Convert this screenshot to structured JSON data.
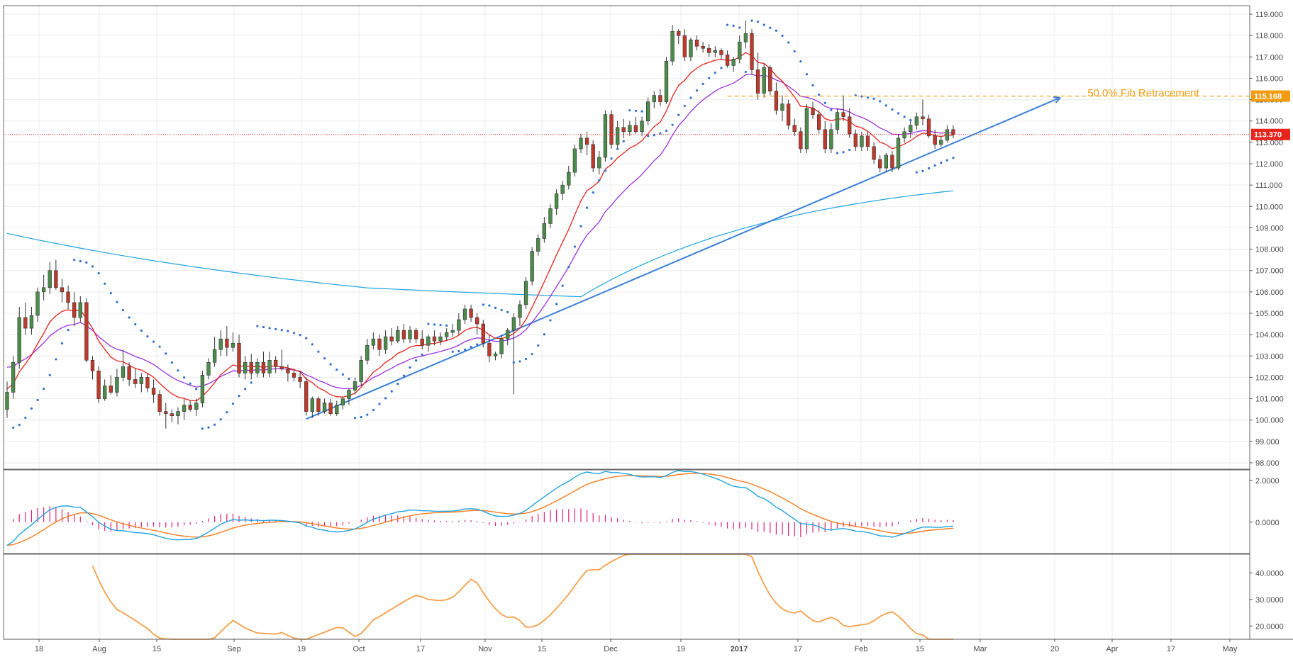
{
  "chart_data": {
    "type": "candlestick",
    "title": "",
    "colors": {
      "up_candle": "#4c8c4a",
      "down_candle": "#c0392b",
      "ema_fast": "#e8231c",
      "ema_slow": "#9b30e0",
      "sma_long": "#1fa3e0",
      "psar": "#2f6fd0",
      "trendline": "#3a7fd8",
      "fib": "#f39c12",
      "price_line": "#e8231c",
      "macd": "#1fa3e0",
      "signal": "#f57c1f",
      "histogram": "#e0217b",
      "adx": "#f5a04a"
    },
    "x_axis": {
      "tick_labels": [
        "18",
        "Aug",
        "15",
        "Sep",
        "19",
        "Oct",
        "17",
        "Nov",
        "15",
        "Dec",
        "19",
        "2017",
        "17",
        "Feb",
        "15",
        "Mar",
        "20",
        "Apr",
        "17",
        "May"
      ],
      "bold_label": "2017"
    },
    "y_axis": {
      "ylim": [
        97.7,
        119.4
      ],
      "ticks": [
        "119.000",
        "118.000",
        "117.000",
        "116.000",
        "115.000",
        "114.000",
        "113.000",
        "112.000",
        "111.000",
        "110.000",
        "109.000",
        "108.000",
        "107.000",
        "106.000",
        "105.000",
        "104.000",
        "103.000",
        "102.000",
        "101.000",
        "100.000",
        "99.000",
        "98.000"
      ]
    },
    "candles": [
      {
        "o": 100.5,
        "h": 101.8,
        "l": 100.1,
        "c": 101.3
      },
      {
        "o": 101.3,
        "h": 103.0,
        "l": 101.0,
        "c": 102.7
      },
      {
        "o": 102.7,
        "h": 105.3,
        "l": 102.4,
        "c": 104.8
      },
      {
        "o": 104.8,
        "h": 105.5,
        "l": 104.0,
        "c": 104.3
      },
      {
        "o": 104.3,
        "h": 105.3,
        "l": 104.0,
        "c": 104.9
      },
      {
        "o": 104.9,
        "h": 106.2,
        "l": 104.6,
        "c": 106.0
      },
      {
        "o": 106.0,
        "h": 106.8,
        "l": 105.6,
        "c": 106.2
      },
      {
        "o": 106.2,
        "h": 107.4,
        "l": 105.9,
        "c": 107.0
      },
      {
        "o": 107.0,
        "h": 107.5,
        "l": 106.1,
        "c": 106.2
      },
      {
        "o": 106.2,
        "h": 106.6,
        "l": 105.5,
        "c": 106.0
      },
      {
        "o": 106.0,
        "h": 106.3,
        "l": 105.2,
        "c": 105.5
      },
      {
        "o": 105.5,
        "h": 106.0,
        "l": 104.4,
        "c": 104.8
      },
      {
        "o": 104.8,
        "h": 105.8,
        "l": 104.6,
        "c": 105.5
      },
      {
        "o": 105.5,
        "h": 105.7,
        "l": 102.7,
        "c": 102.8
      },
      {
        "o": 102.8,
        "h": 103.0,
        "l": 101.9,
        "c": 102.3
      },
      {
        "o": 102.3,
        "h": 102.5,
        "l": 100.8,
        "c": 101.0
      },
      {
        "o": 101.0,
        "h": 101.9,
        "l": 100.9,
        "c": 101.6
      },
      {
        "o": 101.6,
        "h": 102.1,
        "l": 101.2,
        "c": 101.3
      },
      {
        "o": 101.3,
        "h": 102.4,
        "l": 101.1,
        "c": 102.0
      },
      {
        "o": 102.0,
        "h": 103.3,
        "l": 101.8,
        "c": 102.5
      },
      {
        "o": 102.5,
        "h": 102.7,
        "l": 101.6,
        "c": 101.9
      },
      {
        "o": 101.9,
        "h": 102.4,
        "l": 101.5,
        "c": 101.7
      },
      {
        "o": 101.7,
        "h": 102.2,
        "l": 101.3,
        "c": 102.0
      },
      {
        "o": 102.0,
        "h": 102.2,
        "l": 101.3,
        "c": 101.5
      },
      {
        "o": 101.5,
        "h": 101.9,
        "l": 100.8,
        "c": 101.2
      },
      {
        "o": 101.2,
        "h": 101.4,
        "l": 100.2,
        "c": 100.4
      },
      {
        "o": 100.4,
        "h": 100.8,
        "l": 99.6,
        "c": 100.3
      },
      {
        "o": 100.3,
        "h": 100.5,
        "l": 99.9,
        "c": 100.2
      },
      {
        "o": 100.2,
        "h": 100.6,
        "l": 99.8,
        "c": 100.4
      },
      {
        "o": 100.4,
        "h": 101.0,
        "l": 100.0,
        "c": 100.7
      },
      {
        "o": 100.7,
        "h": 100.9,
        "l": 100.4,
        "c": 100.5
      },
      {
        "o": 100.5,
        "h": 101.0,
        "l": 100.2,
        "c": 100.8
      },
      {
        "o": 100.8,
        "h": 102.3,
        "l": 100.6,
        "c": 102.1
      },
      {
        "o": 102.1,
        "h": 102.9,
        "l": 101.9,
        "c": 102.7
      },
      {
        "o": 102.7,
        "h": 103.9,
        "l": 102.5,
        "c": 103.3
      },
      {
        "o": 103.3,
        "h": 104.2,
        "l": 103.0,
        "c": 103.8
      },
      {
        "o": 103.8,
        "h": 104.4,
        "l": 103.0,
        "c": 103.4
      },
      {
        "o": 103.4,
        "h": 104.1,
        "l": 103.2,
        "c": 103.6
      },
      {
        "o": 103.6,
        "h": 104.0,
        "l": 102.0,
        "c": 102.2
      },
      {
        "o": 102.2,
        "h": 103.0,
        "l": 101.9,
        "c": 102.7
      },
      {
        "o": 102.7,
        "h": 103.1,
        "l": 101.9,
        "c": 102.2
      },
      {
        "o": 102.2,
        "h": 102.9,
        "l": 102.0,
        "c": 102.7
      },
      {
        "o": 102.7,
        "h": 103.2,
        "l": 102.0,
        "c": 102.2
      },
      {
        "o": 102.2,
        "h": 103.2,
        "l": 102.0,
        "c": 102.8
      },
      {
        "o": 102.8,
        "h": 103.0,
        "l": 102.2,
        "c": 102.5
      },
      {
        "o": 102.5,
        "h": 103.3,
        "l": 102.3,
        "c": 102.4
      },
      {
        "o": 102.4,
        "h": 102.6,
        "l": 101.8,
        "c": 102.2
      },
      {
        "o": 102.2,
        "h": 102.4,
        "l": 101.8,
        "c": 102.0
      },
      {
        "o": 102.0,
        "h": 102.3,
        "l": 101.5,
        "c": 101.8
      },
      {
        "o": 101.8,
        "h": 102.0,
        "l": 100.2,
        "c": 100.4
      },
      {
        "o": 100.4,
        "h": 101.1,
        "l": 100.1,
        "c": 101.0
      },
      {
        "o": 101.0,
        "h": 101.1,
        "l": 100.2,
        "c": 100.4
      },
      {
        "o": 100.4,
        "h": 101.0,
        "l": 100.3,
        "c": 100.8
      },
      {
        "o": 100.8,
        "h": 101.0,
        "l": 100.2,
        "c": 100.3
      },
      {
        "o": 100.3,
        "h": 100.9,
        "l": 100.2,
        "c": 100.7
      },
      {
        "o": 100.7,
        "h": 101.1,
        "l": 100.5,
        "c": 101.0
      },
      {
        "o": 101.0,
        "h": 101.5,
        "l": 100.7,
        "c": 101.4
      },
      {
        "o": 101.4,
        "h": 102.0,
        "l": 101.2,
        "c": 101.8
      },
      {
        "o": 101.8,
        "h": 103.0,
        "l": 101.6,
        "c": 102.8
      },
      {
        "o": 102.8,
        "h": 103.8,
        "l": 102.6,
        "c": 103.5
      },
      {
        "o": 103.5,
        "h": 104.1,
        "l": 103.3,
        "c": 103.8
      },
      {
        "o": 103.8,
        "h": 104.0,
        "l": 103.0,
        "c": 103.3
      },
      {
        "o": 103.3,
        "h": 104.2,
        "l": 103.1,
        "c": 103.9
      },
      {
        "o": 103.9,
        "h": 104.3,
        "l": 103.5,
        "c": 103.7
      },
      {
        "o": 103.7,
        "h": 104.4,
        "l": 103.6,
        "c": 104.2
      },
      {
        "o": 104.2,
        "h": 104.5,
        "l": 103.6,
        "c": 103.8
      },
      {
        "o": 103.8,
        "h": 104.4,
        "l": 103.6,
        "c": 104.2
      },
      {
        "o": 104.2,
        "h": 104.3,
        "l": 103.6,
        "c": 103.8
      },
      {
        "o": 103.8,
        "h": 104.2,
        "l": 103.3,
        "c": 103.5
      },
      {
        "o": 103.5,
        "h": 104.0,
        "l": 103.2,
        "c": 103.9
      },
      {
        "o": 103.9,
        "h": 104.2,
        "l": 103.5,
        "c": 103.7
      },
      {
        "o": 103.7,
        "h": 104.1,
        "l": 103.5,
        "c": 103.9
      },
      {
        "o": 103.9,
        "h": 104.3,
        "l": 103.7,
        "c": 104.1
      },
      {
        "o": 104.1,
        "h": 104.5,
        "l": 103.9,
        "c": 104.2
      },
      {
        "o": 104.2,
        "h": 105.0,
        "l": 104.0,
        "c": 104.7
      },
      {
        "o": 104.7,
        "h": 105.4,
        "l": 104.5,
        "c": 105.2
      },
      {
        "o": 105.2,
        "h": 105.4,
        "l": 104.6,
        "c": 104.8
      },
      {
        "o": 104.8,
        "h": 105.0,
        "l": 104.0,
        "c": 104.5
      },
      {
        "o": 104.5,
        "h": 104.7,
        "l": 103.4,
        "c": 103.6
      },
      {
        "o": 103.6,
        "h": 104.0,
        "l": 102.7,
        "c": 103.0
      },
      {
        "o": 103.0,
        "h": 103.2,
        "l": 102.8,
        "c": 103.1
      },
      {
        "o": 103.1,
        "h": 104.0,
        "l": 102.9,
        "c": 103.8
      },
      {
        "o": 103.8,
        "h": 104.3,
        "l": 103.5,
        "c": 104.2
      },
      {
        "o": 104.2,
        "h": 105.0,
        "l": 101.2,
        "c": 104.8
      },
      {
        "o": 104.8,
        "h": 105.6,
        "l": 104.4,
        "c": 105.4
      },
      {
        "o": 105.4,
        "h": 106.7,
        "l": 105.2,
        "c": 106.5
      },
      {
        "o": 106.5,
        "h": 108.1,
        "l": 106.3,
        "c": 107.9
      },
      {
        "o": 107.9,
        "h": 108.7,
        "l": 107.7,
        "c": 108.5
      },
      {
        "o": 108.5,
        "h": 109.5,
        "l": 108.3,
        "c": 109.2
      },
      {
        "o": 109.2,
        "h": 110.1,
        "l": 109.0,
        "c": 109.9
      },
      {
        "o": 109.9,
        "h": 110.8,
        "l": 109.6,
        "c": 110.6
      },
      {
        "o": 110.6,
        "h": 111.2,
        "l": 110.3,
        "c": 111.0
      },
      {
        "o": 111.0,
        "h": 111.9,
        "l": 110.8,
        "c": 111.6
      },
      {
        "o": 111.6,
        "h": 112.9,
        "l": 111.4,
        "c": 112.7
      },
      {
        "o": 112.7,
        "h": 113.4,
        "l": 112.5,
        "c": 113.2
      },
      {
        "o": 113.2,
        "h": 113.5,
        "l": 112.4,
        "c": 112.9
      },
      {
        "o": 112.9,
        "h": 113.1,
        "l": 111.6,
        "c": 111.8
      },
      {
        "o": 111.8,
        "h": 112.6,
        "l": 111.5,
        "c": 112.3
      },
      {
        "o": 112.3,
        "h": 114.5,
        "l": 112.1,
        "c": 114.3
      },
      {
        "o": 114.3,
        "h": 114.5,
        "l": 112.7,
        "c": 112.9
      },
      {
        "o": 112.9,
        "h": 114.0,
        "l": 112.7,
        "c": 113.7
      },
      {
        "o": 113.7,
        "h": 114.1,
        "l": 113.2,
        "c": 113.5
      },
      {
        "o": 113.5,
        "h": 114.0,
        "l": 113.3,
        "c": 113.8
      },
      {
        "o": 113.8,
        "h": 114.2,
        "l": 113.4,
        "c": 113.5
      },
      {
        "o": 113.5,
        "h": 114.2,
        "l": 113.3,
        "c": 114.0
      },
      {
        "o": 114.0,
        "h": 115.1,
        "l": 113.8,
        "c": 114.9
      },
      {
        "o": 114.9,
        "h": 115.4,
        "l": 114.6,
        "c": 115.2
      },
      {
        "o": 115.2,
        "h": 115.5,
        "l": 114.7,
        "c": 114.9
      },
      {
        "o": 114.9,
        "h": 117.0,
        "l": 114.8,
        "c": 116.8
      },
      {
        "o": 116.8,
        "h": 118.5,
        "l": 116.6,
        "c": 118.2
      },
      {
        "o": 118.2,
        "h": 118.3,
        "l": 117.6,
        "c": 118.0
      },
      {
        "o": 118.0,
        "h": 118.3,
        "l": 116.8,
        "c": 117.0
      },
      {
        "o": 117.0,
        "h": 117.9,
        "l": 116.8,
        "c": 117.8
      },
      {
        "o": 117.8,
        "h": 118.0,
        "l": 117.3,
        "c": 117.5
      },
      {
        "o": 117.5,
        "h": 117.7,
        "l": 117.2,
        "c": 117.4
      },
      {
        "o": 117.4,
        "h": 117.6,
        "l": 117.0,
        "c": 117.2
      },
      {
        "o": 117.2,
        "h": 117.5,
        "l": 117.0,
        "c": 117.3
      },
      {
        "o": 117.3,
        "h": 117.4,
        "l": 116.9,
        "c": 117.1
      },
      {
        "o": 117.1,
        "h": 117.3,
        "l": 116.5,
        "c": 116.6
      },
      {
        "o": 116.6,
        "h": 117.0,
        "l": 116.3,
        "c": 116.9
      },
      {
        "o": 116.9,
        "h": 118.0,
        "l": 116.7,
        "c": 117.7
      },
      {
        "o": 117.7,
        "h": 118.7,
        "l": 117.4,
        "c": 118.1
      },
      {
        "o": 118.1,
        "h": 118.3,
        "l": 116.2,
        "c": 116.4
      },
      {
        "o": 116.4,
        "h": 117.2,
        "l": 115.0,
        "c": 115.3
      },
      {
        "o": 115.3,
        "h": 116.7,
        "l": 115.1,
        "c": 116.5
      },
      {
        "o": 116.5,
        "h": 116.6,
        "l": 115.2,
        "c": 115.4
      },
      {
        "o": 115.4,
        "h": 115.8,
        "l": 114.3,
        "c": 114.5
      },
      {
        "o": 114.5,
        "h": 115.2,
        "l": 114.0,
        "c": 114.8
      },
      {
        "o": 114.8,
        "h": 115.0,
        "l": 113.6,
        "c": 113.8
      },
      {
        "o": 113.8,
        "h": 114.1,
        "l": 113.3,
        "c": 113.5
      },
      {
        "o": 113.5,
        "h": 113.7,
        "l": 112.5,
        "c": 112.7
      },
      {
        "o": 112.7,
        "h": 114.8,
        "l": 112.5,
        "c": 114.6
      },
      {
        "o": 114.6,
        "h": 114.9,
        "l": 114.1,
        "c": 114.3
      },
      {
        "o": 114.3,
        "h": 114.5,
        "l": 113.4,
        "c": 113.6
      },
      {
        "o": 113.6,
        "h": 114.0,
        "l": 112.5,
        "c": 112.7
      },
      {
        "o": 112.7,
        "h": 113.9,
        "l": 112.5,
        "c": 113.6
      },
      {
        "o": 113.6,
        "h": 114.6,
        "l": 113.4,
        "c": 114.4
      },
      {
        "o": 114.4,
        "h": 115.2,
        "l": 114.0,
        "c": 114.2
      },
      {
        "o": 114.2,
        "h": 114.6,
        "l": 113.2,
        "c": 113.4
      },
      {
        "o": 113.4,
        "h": 113.6,
        "l": 112.6,
        "c": 112.8
      },
      {
        "o": 112.8,
        "h": 113.5,
        "l": 112.6,
        "c": 113.3
      },
      {
        "o": 113.3,
        "h": 113.5,
        "l": 112.6,
        "c": 112.8
      },
      {
        "o": 112.8,
        "h": 113.0,
        "l": 112.0,
        "c": 112.2
      },
      {
        "o": 112.2,
        "h": 112.4,
        "l": 111.6,
        "c": 111.8
      },
      {
        "o": 111.8,
        "h": 112.5,
        "l": 111.6,
        "c": 112.4
      },
      {
        "o": 112.4,
        "h": 112.6,
        "l": 111.6,
        "c": 111.8
      },
      {
        "o": 111.8,
        "h": 113.4,
        "l": 111.7,
        "c": 113.2
      },
      {
        "o": 113.2,
        "h": 113.7,
        "l": 113.0,
        "c": 113.5
      },
      {
        "o": 113.5,
        "h": 114.0,
        "l": 113.2,
        "c": 113.8
      },
      {
        "o": 113.8,
        "h": 114.4,
        "l": 113.6,
        "c": 114.2
      },
      {
        "o": 114.2,
        "h": 115.0,
        "l": 113.8,
        "c": 114.1
      },
      {
        "o": 114.1,
        "h": 114.3,
        "l": 113.2,
        "c": 113.3
      },
      {
        "o": 113.3,
        "h": 113.6,
        "l": 112.7,
        "c": 112.9
      },
      {
        "o": 112.9,
        "h": 113.3,
        "l": 112.8,
        "c": 113.1
      },
      {
        "o": 113.1,
        "h": 113.8,
        "l": 113.0,
        "c": 113.6
      },
      {
        "o": 113.6,
        "h": 113.8,
        "l": 113.2,
        "c": 113.37
      }
    ],
    "overlays": {
      "fib_label": "50.0% Fib Retracement",
      "fib_level": 115.168,
      "fib_level_label": "115.168",
      "last_price": 113.37,
      "last_price_label": "113.370",
      "trendline": [
        [
          100.0,
          102.1
        ]
      ]
    },
    "macd_panel": {
      "ylim": [
        -1.5,
        2.5
      ],
      "ticks": [
        "2.0000",
        "0.0000"
      ]
    },
    "adx_panel": {
      "ylim": [
        15,
        47
      ],
      "ticks": [
        "40.0000",
        "30.0000",
        "20.0000"
      ]
    }
  }
}
